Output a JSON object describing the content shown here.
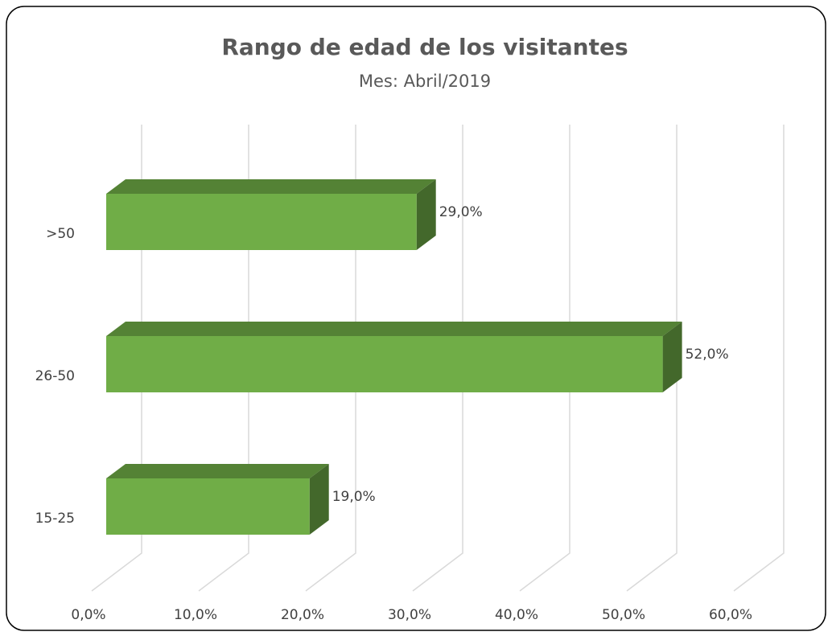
{
  "chart_data": {
    "type": "bar3d_horizontal",
    "title": "Rango de edad de los visitantes",
    "subtitle": "Mes: Abril/2019",
    "categories": [
      "15-25",
      "26-50",
      ">50"
    ],
    "values": [
      19,
      52,
      29
    ],
    "value_labels": [
      "19,0%",
      "52,0%",
      "29,0%"
    ],
    "color": "#70ad47",
    "xlim": [
      0,
      60
    ],
    "xticks": [
      {
        "value": 0,
        "label": "0,0%"
      },
      {
        "value": 10,
        "label": "10,0%"
      },
      {
        "value": 20,
        "label": "20,0%"
      },
      {
        "value": 30,
        "label": "30,0%"
      },
      {
        "value": 40,
        "label": "40,0%"
      },
      {
        "value": 50,
        "label": "50,0%"
      },
      {
        "value": 60,
        "label": "60,0%"
      }
    ],
    "grid": true
  }
}
